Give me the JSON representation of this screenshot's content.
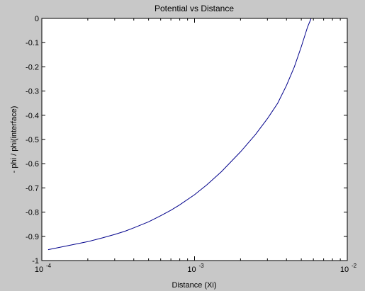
{
  "chart_data": {
    "type": "line",
    "title": "Potential vs Distance",
    "xlabel": "Distance (Xi)",
    "ylabel": "- phi / phi(interface)",
    "x_scale": "log",
    "xlim": [
      0.0001,
      0.01
    ],
    "ylim": [
      -1,
      0
    ],
    "x_ticks": [
      0.0001,
      0.001,
      0.01
    ],
    "x_tick_labels": [
      {
        "base": "10",
        "exp": "-4"
      },
      {
        "base": "10",
        "exp": "-3"
      },
      {
        "base": "10",
        "exp": "-2"
      }
    ],
    "y_ticks": [
      0,
      -0.1,
      -0.2,
      -0.3,
      -0.4,
      -0.5,
      -0.6,
      -0.7,
      -0.8,
      -0.9,
      -1
    ],
    "y_tick_labels": [
      "0",
      "-0.1",
      "-0.2",
      "-0.3",
      "-0.4",
      "-0.5",
      "-0.6",
      "-0.7",
      "-0.8",
      "-0.9",
      "-1"
    ],
    "grid": false,
    "series": [
      {
        "color": "#00008b",
        "x": [
          0.00011,
          0.00015,
          0.0002,
          0.00025,
          0.0003,
          0.00035,
          0.0004,
          0.0005,
          0.0006,
          0.0007,
          0.0008,
          0.001,
          0.0012,
          0.0015,
          0.002,
          0.0025,
          0.003,
          0.0035,
          0.004,
          0.0045,
          0.005,
          0.0055,
          0.0058
        ],
        "y": [
          -0.955,
          -0.938,
          -0.922,
          -0.906,
          -0.892,
          -0.879,
          -0.865,
          -0.84,
          -0.815,
          -0.792,
          -0.77,
          -0.728,
          -0.688,
          -0.633,
          -0.551,
          -0.48,
          -0.414,
          -0.351,
          -0.277,
          -0.2,
          -0.117,
          -0.035,
          0.0
        ]
      }
    ]
  }
}
